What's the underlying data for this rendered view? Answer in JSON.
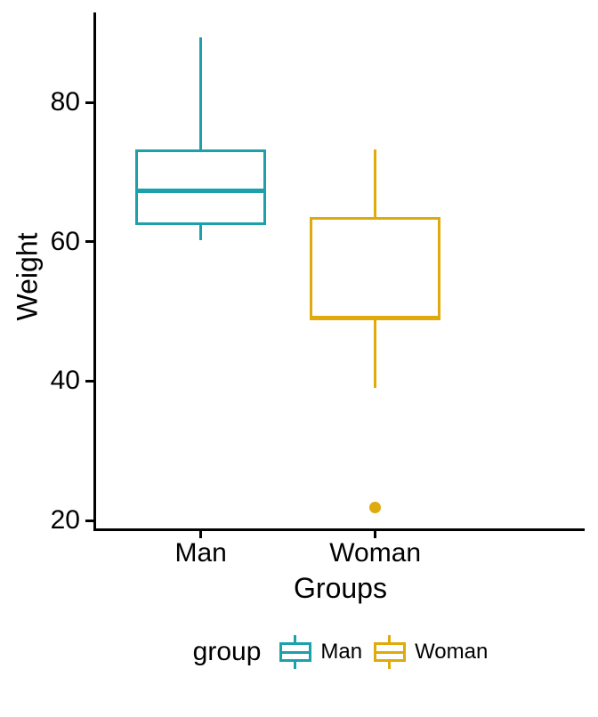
{
  "figure": {
    "background": "#FFFFFF"
  },
  "chart_data": {
    "type": "boxplot",
    "title": "",
    "xlabel": "Groups",
    "ylabel": "Weight",
    "categories": [
      "Man",
      "Woman"
    ],
    "yticks": [
      80,
      60,
      40,
      20
    ],
    "ylim": [
      18.6,
      92.9
    ],
    "grid": false,
    "axis_color": "#000000",
    "text_color": "#000000",
    "series": [
      {
        "name": "Man",
        "color": "#1CA0AC",
        "min": 60.2,
        "q1": 62.4,
        "median": 67.3,
        "q3": 73.2,
        "max": 89.3,
        "outliers": []
      },
      {
        "name": "Woman",
        "color": "#DFAA0C",
        "min": 39.0,
        "q1": 48.9,
        "median": 49.1,
        "q3": 63.5,
        "max": 73.3,
        "outliers": [
          21.9
        ]
      }
    ],
    "legend": {
      "title": "group",
      "position": "bottom",
      "entries": [
        "Man",
        "Woman"
      ]
    }
  }
}
